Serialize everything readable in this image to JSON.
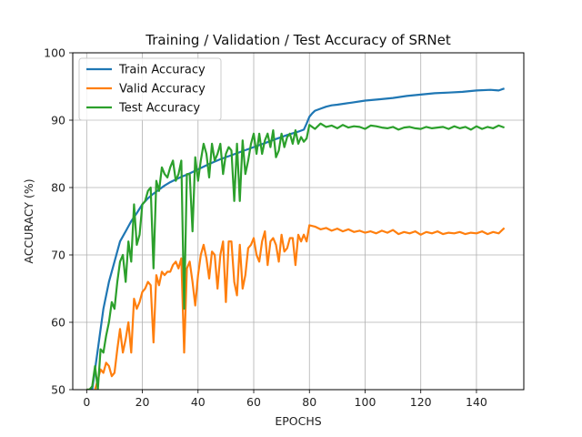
{
  "chart_data": {
    "type": "line",
    "title": "Training / Validation / Test Accuracy of SRNet",
    "xlabel": "EPOCHS",
    "ylabel": "ACCURACY (%)",
    "xlim": [
      -5,
      157
    ],
    "ylim": [
      50,
      100
    ],
    "xticks": [
      0,
      20,
      40,
      60,
      80,
      100,
      120,
      140
    ],
    "yticks": [
      50,
      60,
      70,
      80,
      90,
      100
    ],
    "grid": true,
    "legend_position": "upper-left",
    "series": [
      {
        "name": "Train Accuracy",
        "color": "#1f77b4",
        "x": [
          0,
          2,
          4,
          6,
          8,
          10,
          12,
          14,
          16,
          18,
          20,
          22,
          24,
          26,
          28,
          30,
          32,
          34,
          36,
          38,
          40,
          44,
          48,
          52,
          56,
          60,
          64,
          68,
          72,
          76,
          78,
          79,
          80,
          81,
          82,
          84,
          86,
          88,
          90,
          95,
          100,
          105,
          110,
          115,
          120,
          125,
          130,
          135,
          140,
          145,
          148,
          150
        ],
        "y": [
          50,
          50,
          56,
          62,
          66,
          69,
          72,
          73.5,
          75,
          76.2,
          77.5,
          78.4,
          79.1,
          79.7,
          80.3,
          80.8,
          81.2,
          81.6,
          81.9,
          82.3,
          82.7,
          83.5,
          84.2,
          84.8,
          85.4,
          86,
          86.6,
          87.2,
          87.8,
          88.3,
          88.6,
          89.5,
          90.5,
          91,
          91.4,
          91.7,
          92,
          92.2,
          92.3,
          92.6,
          92.9,
          93.1,
          93.3,
          93.6,
          93.8,
          94,
          94.1,
          94.2,
          94.4,
          94.5,
          94.4,
          94.7
        ]
      },
      {
        "name": "Valid Accuracy",
        "color": "#ff7f0e",
        "x": [
          0,
          1,
          2,
          3,
          4,
          5,
          6,
          7,
          8,
          9,
          10,
          11,
          12,
          13,
          14,
          15,
          16,
          17,
          18,
          19,
          20,
          21,
          22,
          23,
          24,
          25,
          26,
          27,
          28,
          29,
          30,
          31,
          32,
          33,
          34,
          35,
          36,
          37,
          38,
          39,
          40,
          41,
          42,
          43,
          44,
          45,
          46,
          47,
          48,
          49,
          50,
          51,
          52,
          53,
          54,
          55,
          56,
          57,
          58,
          59,
          60,
          61,
          62,
          63,
          64,
          65,
          66,
          67,
          68,
          69,
          70,
          71,
          72,
          73,
          74,
          75,
          76,
          77,
          78,
          79,
          80,
          82,
          84,
          86,
          88,
          90,
          92,
          94,
          96,
          98,
          100,
          102,
          104,
          106,
          108,
          110,
          112,
          114,
          116,
          118,
          120,
          122,
          124,
          126,
          128,
          130,
          132,
          134,
          136,
          138,
          140,
          142,
          144,
          146,
          148,
          150
        ],
        "y": [
          50,
          50,
          49.5,
          50,
          51.5,
          53,
          52.5,
          54,
          53.5,
          52,
          52.5,
          56,
          59,
          55.5,
          57.5,
          60,
          55.5,
          63.5,
          62,
          63,
          64.5,
          65,
          66,
          65.5,
          57,
          67,
          65.5,
          67.5,
          67,
          67.5,
          67.5,
          68.5,
          69,
          68,
          69.5,
          55.5,
          68,
          69,
          66,
          62.5,
          67,
          70,
          71.5,
          69.5,
          66.5,
          70.5,
          70,
          65,
          70,
          72,
          63,
          72,
          72,
          66,
          64,
          71.5,
          65,
          67,
          71,
          71.5,
          72.5,
          70,
          69,
          72,
          73.5,
          68.5,
          72,
          72.5,
          71.5,
          69,
          73,
          70.5,
          71,
          72.5,
          72.5,
          68.5,
          73,
          72,
          73,
          72,
          74.4,
          74.2,
          73.8,
          74,
          73.6,
          73.9,
          73.5,
          73.8,
          73.4,
          73.6,
          73.3,
          73.5,
          73.2,
          73.6,
          73.3,
          73.7,
          73.1,
          73.4,
          73.2,
          73.5,
          73,
          73.4,
          73.2,
          73.5,
          73.1,
          73.3,
          73.2,
          73.4,
          73.1,
          73.3,
          73.2,
          73.5,
          73.1,
          73.4,
          73.2,
          74
        ]
      },
      {
        "name": "Test Accuracy",
        "color": "#2ca02c",
        "x": [
          0,
          1,
          2,
          3,
          4,
          5,
          6,
          7,
          8,
          9,
          10,
          11,
          12,
          13,
          14,
          15,
          16,
          17,
          18,
          19,
          20,
          21,
          22,
          23,
          24,
          25,
          26,
          27,
          28,
          29,
          30,
          31,
          32,
          33,
          34,
          35,
          36,
          37,
          38,
          39,
          40,
          41,
          42,
          43,
          44,
          45,
          46,
          47,
          48,
          49,
          50,
          51,
          52,
          53,
          54,
          55,
          56,
          57,
          58,
          59,
          60,
          61,
          62,
          63,
          64,
          65,
          66,
          67,
          68,
          69,
          70,
          71,
          72,
          73,
          74,
          75,
          76,
          77,
          78,
          79,
          80,
          82,
          84,
          86,
          88,
          90,
          92,
          94,
          96,
          98,
          100,
          102,
          104,
          106,
          108,
          110,
          112,
          114,
          116,
          118,
          120,
          122,
          124,
          126,
          128,
          130,
          132,
          134,
          136,
          138,
          140,
          142,
          144,
          146,
          148,
          150
        ],
        "y": [
          50,
          50,
          50.5,
          53.5,
          50,
          56,
          55.5,
          58,
          60,
          63,
          62,
          66,
          69,
          70,
          66,
          72,
          69,
          77.5,
          71.5,
          73,
          77.5,
          78,
          79.5,
          80,
          68,
          81,
          79.5,
          83,
          82,
          81.5,
          83,
          84,
          81,
          82,
          84,
          62,
          82,
          82,
          73.5,
          84.5,
          81,
          84,
          86.5,
          85,
          81.5,
          86.5,
          84,
          85,
          86.5,
          82,
          85,
          86,
          85.5,
          78,
          86.5,
          78,
          87,
          82,
          84,
          86.5,
          88,
          85,
          88,
          85,
          87,
          88,
          86,
          88.5,
          84.5,
          85.5,
          88,
          86,
          87.5,
          88,
          86.5,
          88.5,
          86.5,
          87.5,
          86.8,
          87.3,
          89.3,
          88.7,
          89.5,
          89,
          89.2,
          88.8,
          89.3,
          88.9,
          89.1,
          89,
          88.7,
          89.2,
          89.1,
          88.9,
          88.8,
          89,
          88.6,
          88.9,
          89,
          88.8,
          88.7,
          89,
          88.8,
          88.9,
          89,
          88.7,
          89.1,
          88.8,
          89,
          88.6,
          89.1,
          88.7,
          89,
          88.8,
          89.2,
          88.9
        ]
      }
    ]
  }
}
